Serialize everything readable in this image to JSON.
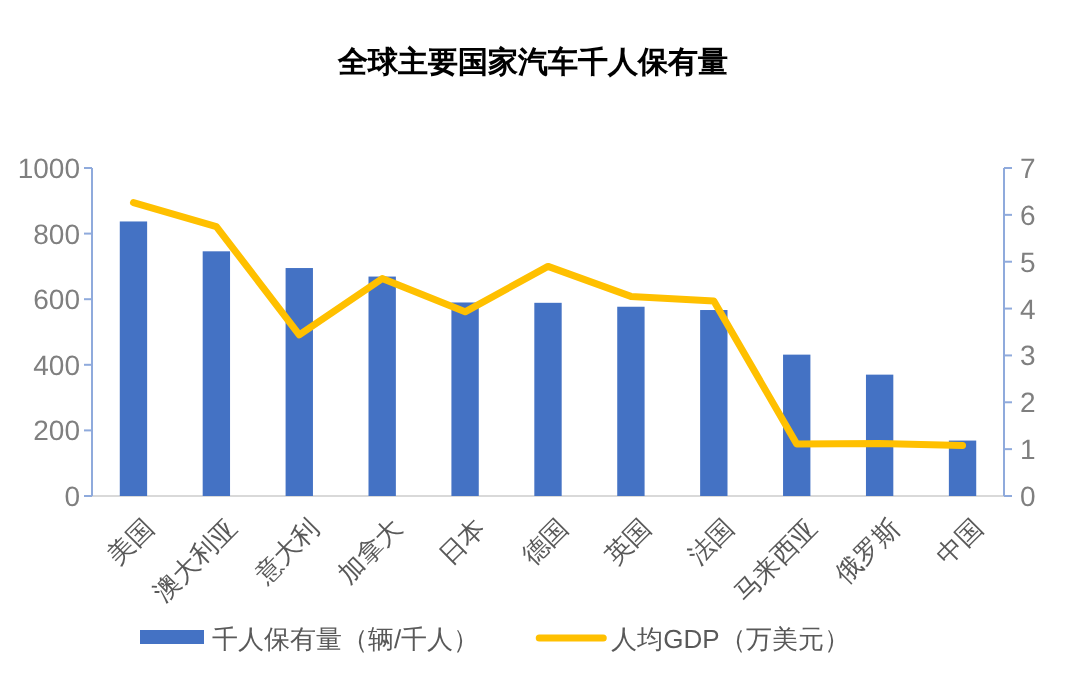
{
  "chart_data": {
    "type": "bar",
    "title": "全球主要国家汽车千人保有量",
    "categories": [
      "美国",
      "澳大利亚",
      "意大利",
      "加拿大",
      "日本",
      "德国",
      "英国",
      "法国",
      "马来西亚",
      "俄罗斯",
      "中国"
    ],
    "series": [
      {
        "name": "千人保有量（辆/千人）",
        "type": "bar",
        "color": "#4472c4",
        "values": [
          837,
          746,
          695,
          669,
          590,
          589,
          577,
          567,
          431,
          370,
          169
        ]
      },
      {
        "name": "人均GDP（万美元）",
        "type": "line",
        "axis": "y2",
        "color": "#ffc000",
        "values": [
          6.26,
          5.75,
          3.44,
          4.64,
          3.93,
          4.9,
          4.26,
          4.16,
          1.11,
          1.12,
          1.08
        ]
      }
    ],
    "ylim": [
      0,
      1000
    ],
    "yticks": [
      0,
      200,
      400,
      600,
      800,
      1000
    ],
    "y2lim": [
      0,
      7
    ],
    "y2ticks": [
      0,
      1,
      2,
      3,
      4,
      5,
      6,
      7
    ],
    "legend": "bottom"
  }
}
